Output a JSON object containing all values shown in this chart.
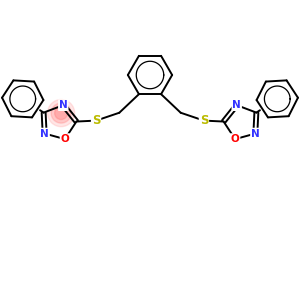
{
  "bg_color": "#ffffff",
  "bond_color": "#000000",
  "N_color": "#3333ff",
  "O_color": "#ff0000",
  "S_color": "#bbbb00",
  "bond_width": 1.4,
  "font_size": 7.5,
  "figsize": [
    3.0,
    3.0
  ],
  "dpi": 100,
  "xlim": [
    -4.2,
    4.2
  ],
  "ylim": [
    -3.8,
    3.2
  ],
  "highlight_color": "#ff7777",
  "highlight_alpha": 0.45
}
